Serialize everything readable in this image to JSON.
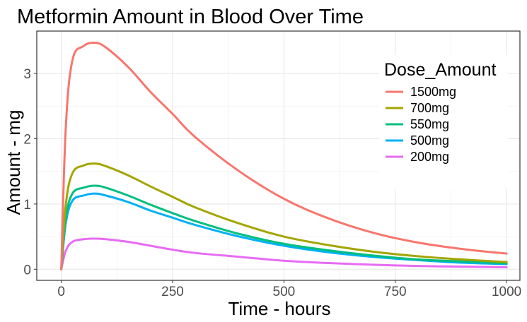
{
  "chart_data": {
    "type": "line",
    "title": "Metformin Amount in Blood Over Time",
    "xlabel": "Time - hours",
    "ylabel": "Amount - mg",
    "xlim": [
      -55,
      1030
    ],
    "ylim": [
      -0.17,
      3.65
    ],
    "x_ticks": [
      0,
      250,
      500,
      750,
      1000
    ],
    "x_tick_labels": [
      "0",
      "250",
      "500",
      "750",
      "1000"
    ],
    "y_ticks": [
      0,
      1,
      2,
      3
    ],
    "y_tick_labels": [
      "0",
      "1",
      "2",
      "3"
    ],
    "grid": true,
    "legend": {
      "title": "Dose_Amount",
      "position": "top-right"
    },
    "x": [
      0,
      10,
      25,
      50,
      75,
      100,
      150,
      200,
      250,
      300,
      400,
      500,
      600,
      700,
      800,
      900,
      1000
    ],
    "series": [
      {
        "name": "1500mg",
        "color": "#F8766D",
        "values": [
          0.0,
          2.15,
          3.2,
          3.42,
          3.47,
          3.4,
          3.1,
          2.72,
          2.38,
          2.03,
          1.5,
          1.08,
          0.78,
          0.56,
          0.41,
          0.31,
          0.24
        ]
      },
      {
        "name": "700mg",
        "color": "#A3A500",
        "values": [
          0.0,
          0.98,
          1.47,
          1.59,
          1.62,
          1.58,
          1.44,
          1.27,
          1.11,
          0.95,
          0.7,
          0.5,
          0.37,
          0.27,
          0.2,
          0.15,
          0.11
        ]
      },
      {
        "name": "550mg",
        "color": "#00BF7D",
        "values": [
          0.0,
          0.78,
          1.16,
          1.25,
          1.28,
          1.25,
          1.13,
          0.99,
          0.86,
          0.74,
          0.54,
          0.39,
          0.29,
          0.21,
          0.15,
          0.12,
          0.09
        ]
      },
      {
        "name": "500mg",
        "color": "#00B0F6",
        "values": [
          0.0,
          0.7,
          1.05,
          1.13,
          1.16,
          1.13,
          1.03,
          0.9,
          0.79,
          0.68,
          0.5,
          0.36,
          0.26,
          0.19,
          0.14,
          0.1,
          0.08
        ]
      },
      {
        "name": "200mg",
        "color": "#E76BF3",
        "values": [
          0.0,
          0.28,
          0.42,
          0.46,
          0.47,
          0.46,
          0.42,
          0.36,
          0.3,
          0.25,
          0.19,
          0.13,
          0.095,
          0.07,
          0.05,
          0.04,
          0.03
        ]
      }
    ]
  }
}
